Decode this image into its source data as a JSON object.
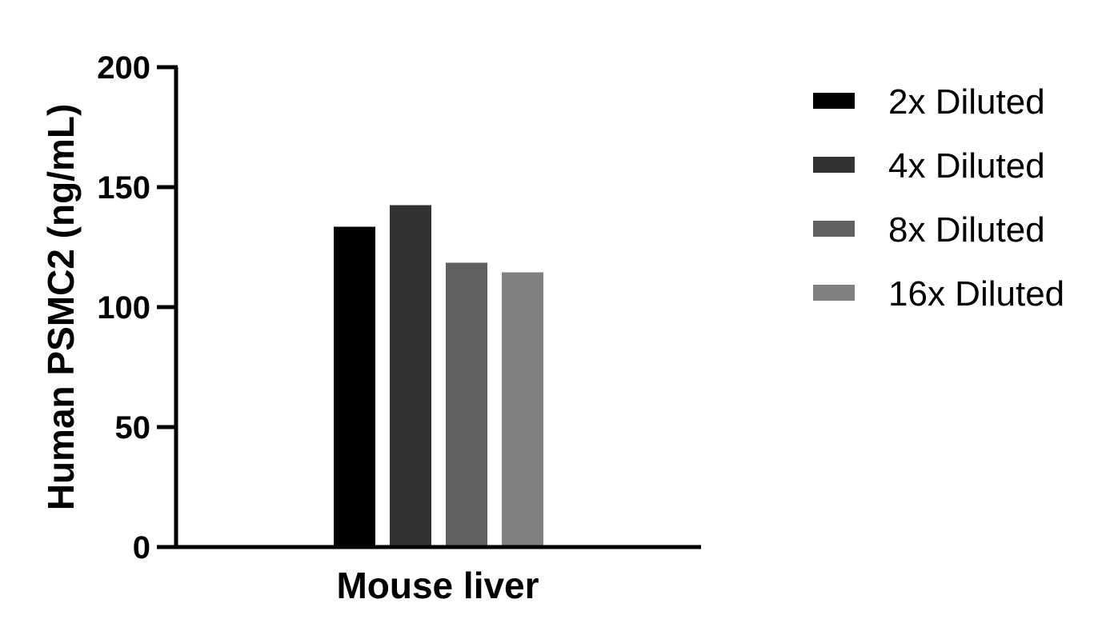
{
  "chart_data": {
    "type": "bar",
    "categories": [
      "Mouse liver"
    ],
    "series": [
      {
        "name": "2x Diluted",
        "values": [
          133.5
        ],
        "color": "#000000"
      },
      {
        "name": "4x Diluted",
        "values": [
          142.5
        ],
        "color": "#333333"
      },
      {
        "name": "8x Diluted",
        "values": [
          118.5
        ],
        "color": "#606060"
      },
      {
        "name": "16x Diluted",
        "values": [
          114.5
        ],
        "color": "#808080"
      }
    ],
    "xlabel": "Mouse liver",
    "ylabel": "Human PSMC2 (ng/mL)",
    "ylim": [
      0,
      200
    ],
    "yticks": [
      "0",
      "50",
      "100",
      "150",
      "200"
    ],
    "grid": false,
    "legend": "right"
  }
}
